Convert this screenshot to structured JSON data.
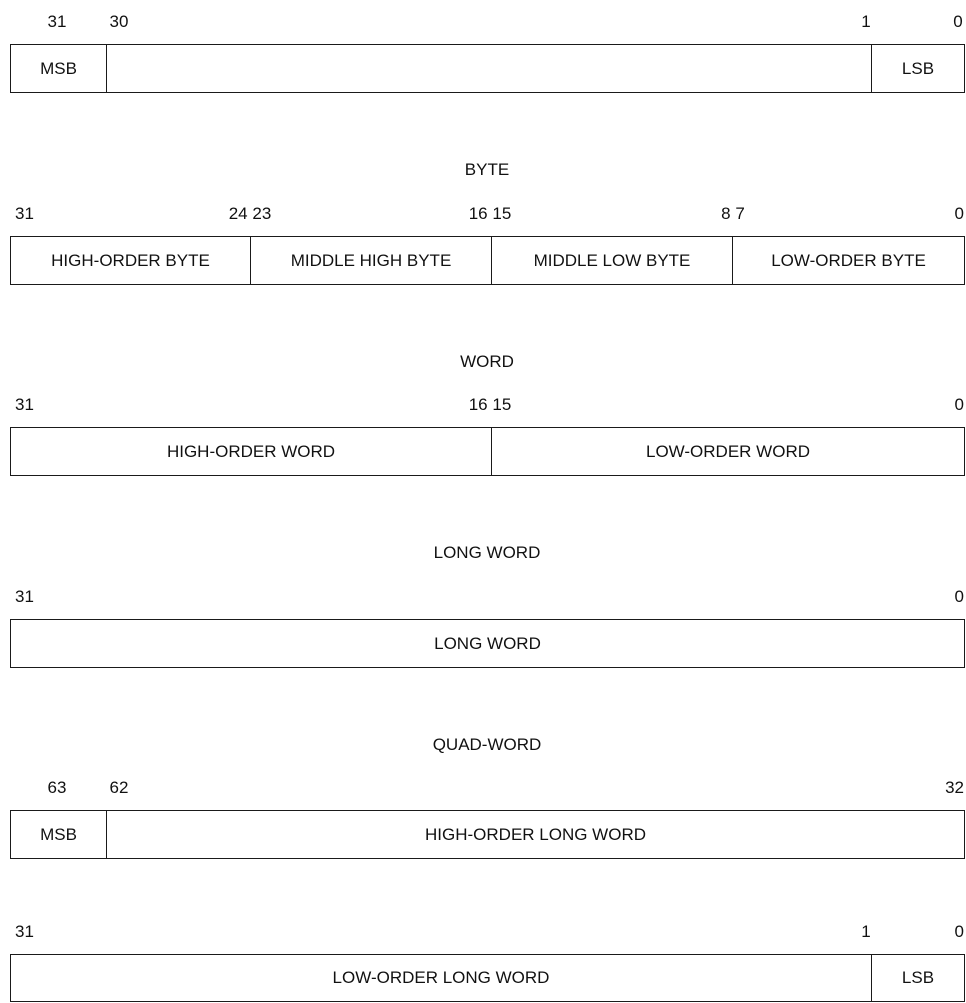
{
  "row1": {
    "bits": [
      "31",
      "30",
      "1",
      "0"
    ],
    "fields": [
      "MSB",
      "",
      "LSB"
    ]
  },
  "byte": {
    "title": "BYTE",
    "bits": [
      "31",
      "24 23",
      "16 15",
      "8 7",
      "0"
    ],
    "fields": [
      "HIGH-ORDER BYTE",
      "MIDDLE HIGH BYTE",
      "MIDDLE LOW BYTE",
      "LOW-ORDER BYTE"
    ]
  },
  "word": {
    "title": "WORD",
    "bits": [
      "31",
      "16 15",
      "0"
    ],
    "fields": [
      "HIGH-ORDER WORD",
      "LOW-ORDER WORD"
    ]
  },
  "long_word": {
    "title": "LONG WORD",
    "bits": [
      "31",
      "0"
    ],
    "fields": [
      "LONG WORD"
    ]
  },
  "quad_word": {
    "title": "QUAD-WORD",
    "high": {
      "bits": [
        "63",
        "62",
        "32"
      ],
      "fields": [
        "MSB",
        "HIGH-ORDER LONG WORD"
      ]
    },
    "low": {
      "bits": [
        "31",
        "1",
        "0"
      ],
      "fields": [
        "LOW-ORDER LONG WORD",
        "LSB"
      ]
    }
  }
}
